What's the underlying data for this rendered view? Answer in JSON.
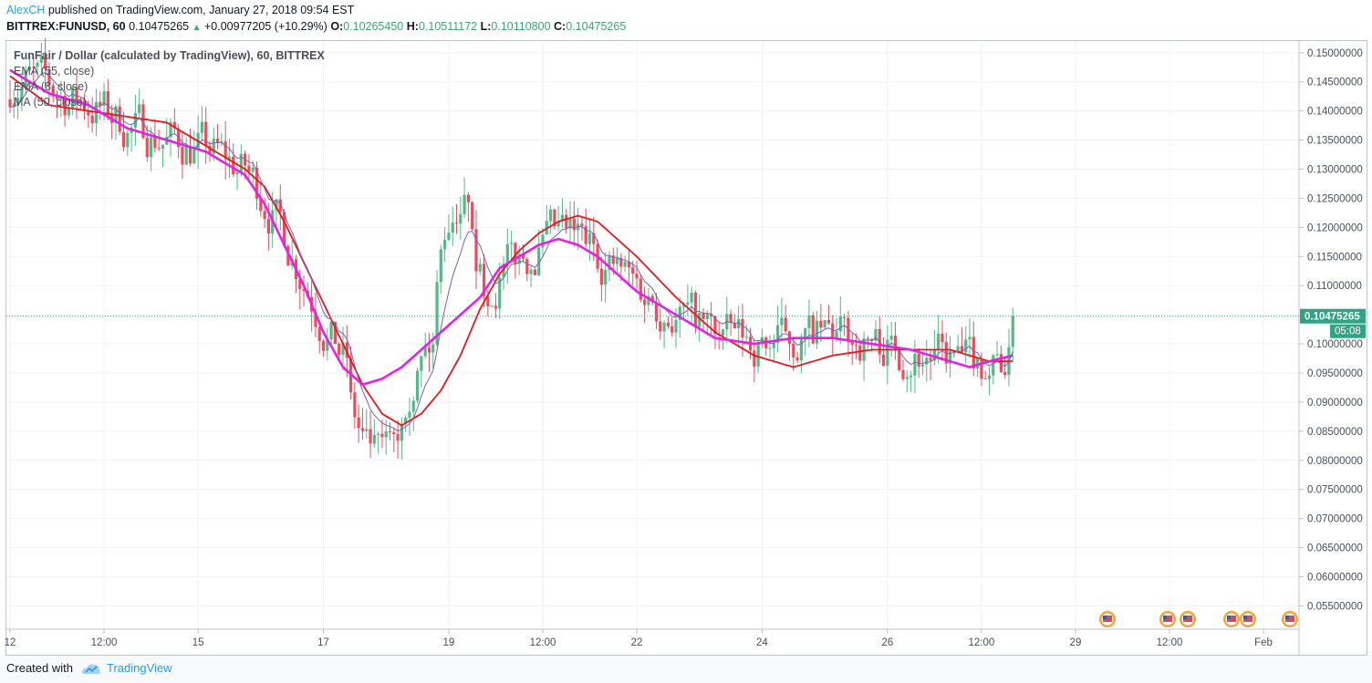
{
  "header": {
    "author": "AlexCH",
    "published_text": "published on TradingView.com, January 27, 2018 09:54 EST",
    "symbol": "BITTREX:FUNUSD, 60",
    "last": "0.10475265",
    "change": "+0.00977205 (+10.29%)",
    "o_label": "O:",
    "o_value": "0.10265450",
    "h_label": "H:",
    "h_value": "0.10511172",
    "l_label": "L:",
    "l_value": "0.10110800",
    "c_label": "C:",
    "c_value": "0.10475265"
  },
  "legend": {
    "title": "FunFair / Dollar (calculated by TradingView), 60, BITTREX",
    "indicators": [
      "EMA (55, close)",
      "EMA (8, close)",
      "MA (50, close)"
    ]
  },
  "price_tag": {
    "value": "0.10475265",
    "countdown": "05:08"
  },
  "footer": {
    "created": "Created with",
    "brand": "TradingView"
  },
  "colors": {
    "up": "#53b987",
    "down": "#eb4d5c",
    "ema55": "#e8161f",
    "ema8": "#7b5fb0",
    "ma50": "#e91ee8",
    "last_line": "#2fa383"
  },
  "chart_data": {
    "type": "candlestick",
    "ylim": [
      0.051,
      0.152
    ],
    "y_ticks": [
      "0.15000000",
      "0.14500000",
      "0.14000000",
      "0.13500000",
      "0.13000000",
      "0.12500000",
      "0.12000000",
      "0.11500000",
      "0.11000000",
      "0.10000000",
      "0.09500000",
      "0.09000000",
      "0.08500000",
      "0.08000000",
      "0.07500000",
      "0.07000000",
      "0.06500000",
      "0.06000000",
      "0.05500000"
    ],
    "y_tick_values": [
      0.15,
      0.145,
      0.14,
      0.135,
      0.13,
      0.125,
      0.12,
      0.115,
      0.11,
      0.1,
      0.095,
      0.09,
      0.085,
      0.08,
      0.075,
      0.07,
      0.065,
      0.06,
      0.055
    ],
    "x_ticks": [
      "12",
      "12:00",
      "15",
      "17",
      "19",
      "12:00",
      "22",
      "24",
      "26",
      "12:00",
      "29",
      "12:00",
      "Feb"
    ],
    "x_tick_index": [
      0,
      24,
      48,
      80,
      112,
      136,
      160,
      192,
      224,
      248,
      272,
      296,
      320
    ],
    "last_price": 0.10475265,
    "series": [
      {
        "name": "EMA (55, close)",
        "x": [
          0,
          10,
          20,
          30,
          40,
          50,
          60,
          65,
          70,
          75,
          80,
          85,
          90,
          95,
          100,
          105,
          110,
          115,
          120,
          125,
          130,
          135,
          140,
          145,
          150,
          160,
          170,
          180,
          190,
          200,
          210,
          220,
          230,
          240,
          245,
          250,
          256
        ],
        "y": [
          0.146,
          0.141,
          0.14,
          0.139,
          0.138,
          0.134,
          0.13,
          0.127,
          0.121,
          0.114,
          0.107,
          0.1,
          0.093,
          0.088,
          0.086,
          0.088,
          0.092,
          0.098,
          0.106,
          0.112,
          0.116,
          0.119,
          0.121,
          0.122,
          0.121,
          0.115,
          0.108,
          0.102,
          0.098,
          0.096,
          0.098,
          0.099,
          0.099,
          0.099,
          0.098,
          0.097,
          0.097
        ]
      },
      {
        "name": "MA (50, close)",
        "x": [
          0,
          10,
          20,
          30,
          40,
          50,
          60,
          65,
          70,
          75,
          80,
          85,
          90,
          95,
          100,
          105,
          110,
          115,
          120,
          125,
          130,
          135,
          140,
          145,
          150,
          160,
          170,
          180,
          190,
          200,
          210,
          220,
          230,
          240,
          245,
          250,
          256
        ],
        "y": [
          0.147,
          0.143,
          0.141,
          0.137,
          0.135,
          0.133,
          0.129,
          0.124,
          0.117,
          0.11,
          0.102,
          0.096,
          0.093,
          0.094,
          0.096,
          0.099,
          0.102,
          0.105,
          0.108,
          0.113,
          0.115,
          0.117,
          0.118,
          0.117,
          0.115,
          0.109,
          0.105,
          0.101,
          0.1,
          0.101,
          0.101,
          0.1,
          0.099,
          0.097,
          0.096,
          0.097,
          0.098
        ]
      }
    ]
  }
}
